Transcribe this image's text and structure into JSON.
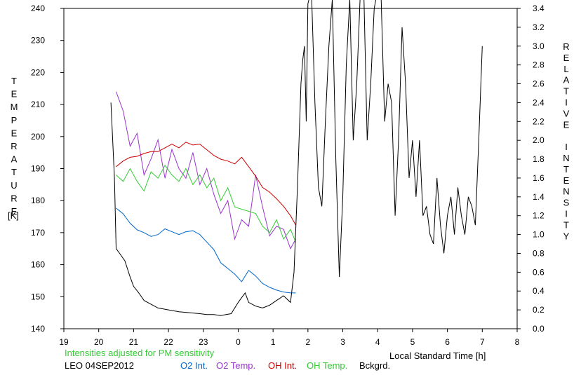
{
  "chart_data": {
    "type": "line",
    "xlabel": "Local Standard Time [h]",
    "x_ticks": [
      "19",
      "20",
      "21",
      "22",
      "23",
      "0",
      "1",
      "2",
      "3",
      "4",
      "5",
      "6",
      "7",
      "8"
    ],
    "left_axis": {
      "label": "TEMPERATURE",
      "unit": "[K]",
      "ylim": [
        140,
        240
      ],
      "ticks": [
        "140",
        "150",
        "160",
        "170",
        "180",
        "190",
        "200",
        "210",
        "220",
        "230",
        "240"
      ]
    },
    "right_axis": {
      "label": "RELATIVE INTENSITY",
      "ylim": [
        0.0,
        3.4
      ],
      "ticks": [
        "0.0",
        "0.2",
        "0.4",
        "0.6",
        "0.8",
        "1.0",
        "1.2",
        "1.4",
        "1.6",
        "1.8",
        "2.0",
        "2.2",
        "2.4",
        "2.6",
        "2.8",
        "3.0",
        "3.2",
        "3.4"
      ]
    },
    "note": "Intensities adjusted for PM sensitivity",
    "station_date": "LEO 04SEP2012",
    "grid": false,
    "legend_position": "bottom",
    "series": [
      {
        "name": "O2 Int.",
        "color": "#0066cc",
        "axis": "right",
        "x": [
          20.5,
          20.7,
          20.9,
          21.1,
          21.3,
          21.5,
          21.7,
          21.9,
          22.1,
          22.3,
          22.5,
          22.7,
          22.9,
          23.1,
          23.3,
          23.5,
          23.7,
          23.9,
          24.1,
          24.3,
          24.5,
          24.7,
          24.9,
          25.1,
          25.3,
          25.5,
          25.65
        ],
        "y": [
          1.28,
          1.22,
          1.12,
          1.05,
          1.02,
          0.98,
          1.0,
          1.06,
          1.03,
          1.0,
          1.03,
          1.04,
          1.0,
          0.92,
          0.84,
          0.7,
          0.64,
          0.58,
          0.5,
          0.62,
          0.56,
          0.48,
          0.44,
          0.41,
          0.39,
          0.38,
          0.38
        ]
      },
      {
        "name": "O2 Temp.",
        "color": "#9933cc",
        "axis": "left",
        "x": [
          20.5,
          20.7,
          20.9,
          21.1,
          21.3,
          21.5,
          21.7,
          21.9,
          22.1,
          22.3,
          22.5,
          22.7,
          22.9,
          23.1,
          23.3,
          23.5,
          23.7,
          23.9,
          24.1,
          24.3,
          24.5,
          24.7,
          24.9,
          25.1,
          25.3,
          25.5,
          25.65
        ],
        "y": [
          214,
          208,
          197,
          201,
          188,
          193,
          199,
          187,
          196,
          190,
          187,
          195,
          185,
          190,
          182,
          176,
          180,
          168,
          174,
          172,
          188,
          178,
          169,
          172,
          171,
          165,
          168
        ]
      },
      {
        "name": "OH Int.",
        "color": "#cc0000",
        "axis": "right",
        "x": [
          20.5,
          20.7,
          20.9,
          21.1,
          21.3,
          21.5,
          21.7,
          21.9,
          22.1,
          22.3,
          22.5,
          22.7,
          22.9,
          23.1,
          23.3,
          23.5,
          23.7,
          23.9,
          24.1,
          24.3,
          24.5,
          24.7,
          24.9,
          25.1,
          25.3,
          25.5,
          25.65
        ],
        "y": [
          1.72,
          1.78,
          1.82,
          1.83,
          1.86,
          1.88,
          1.88,
          1.92,
          1.96,
          1.92,
          1.98,
          1.95,
          1.96,
          1.9,
          1.84,
          1.8,
          1.78,
          1.75,
          1.82,
          1.72,
          1.62,
          1.5,
          1.45,
          1.38,
          1.3,
          1.2,
          1.1
        ]
      },
      {
        "name": "OH Temp.",
        "color": "#33cc33",
        "axis": "left",
        "x": [
          20.5,
          20.7,
          20.9,
          21.1,
          21.3,
          21.5,
          21.7,
          21.9,
          22.1,
          22.3,
          22.5,
          22.7,
          22.9,
          23.1,
          23.3,
          23.5,
          23.7,
          23.9,
          24.5,
          24.7,
          24.9,
          25.1,
          25.3,
          25.5,
          25.65
        ],
        "y": [
          188,
          186,
          190,
          186,
          183,
          189,
          187,
          191,
          188,
          186,
          190,
          185,
          188,
          184,
          187,
          180,
          184,
          178,
          176,
          172,
          170,
          174,
          168,
          171,
          167
        ]
      },
      {
        "name": "Bckgrd.",
        "color": "#000000",
        "axis": "right",
        "x": [
          20.35,
          20.45,
          20.5,
          20.6,
          20.75,
          20.9,
          21.0,
          21.15,
          21.3,
          21.5,
          21.7,
          22.0,
          22.3,
          22.6,
          22.9,
          23.1,
          23.3,
          23.5,
          23.65,
          23.8,
          23.9,
          24.0,
          24.1,
          24.2,
          24.3,
          24.5,
          24.7,
          24.9,
          25.1,
          25.3,
          25.5,
          25.6,
          25.7,
          25.8,
          25.85,
          25.9,
          25.95,
          26.0,
          26.1,
          26.2,
          26.3,
          26.4,
          26.5,
          26.6,
          26.7,
          26.8,
          26.9,
          27.0,
          27.1,
          27.2,
          27.3,
          27.4,
          27.5,
          27.6,
          27.7,
          27.8,
          27.9,
          28.0,
          28.1,
          28.2,
          28.3,
          28.4,
          28.5,
          28.6,
          28.7,
          28.8,
          28.9,
          29.0,
          29.1,
          29.2,
          29.3,
          29.4,
          29.5,
          29.6,
          29.7,
          29.8,
          29.9,
          30.0,
          30.1,
          30.2,
          30.3,
          30.4,
          30.5,
          30.6,
          30.7,
          30.8,
          30.9,
          31.0
        ],
        "y": [
          2.4,
          1.6,
          0.85,
          0.8,
          0.72,
          0.55,
          0.45,
          0.38,
          0.3,
          0.26,
          0.22,
          0.2,
          0.18,
          0.17,
          0.16,
          0.15,
          0.15,
          0.14,
          0.15,
          0.16,
          0.22,
          0.28,
          0.33,
          0.38,
          0.28,
          0.24,
          0.22,
          0.25,
          0.3,
          0.35,
          0.28,
          0.6,
          1.5,
          2.6,
          2.85,
          3.0,
          2.2,
          3.45,
          3.6,
          2.4,
          1.5,
          1.3,
          2.2,
          3.0,
          3.5,
          1.8,
          0.55,
          1.4,
          2.8,
          3.5,
          2.0,
          2.6,
          3.55,
          3.6,
          2.0,
          2.6,
          3.4,
          3.6,
          3.5,
          2.2,
          2.6,
          2.4,
          1.2,
          2.0,
          3.2,
          2.6,
          1.6,
          2.0,
          1.4,
          2.0,
          1.2,
          1.3,
          1.0,
          0.9,
          1.6,
          1.1,
          0.8,
          1.2,
          1.4,
          1.0,
          1.5,
          1.2,
          1.0,
          1.4,
          1.3,
          1.1,
          2.0,
          3.0
        ]
      }
    ]
  }
}
